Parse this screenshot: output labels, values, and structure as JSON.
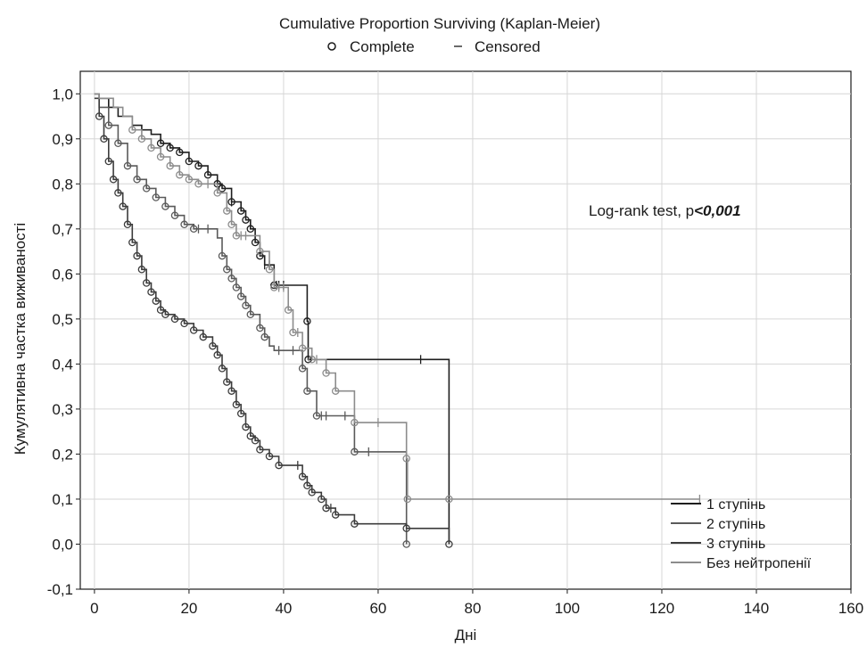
{
  "chart_data": {
    "type": "line",
    "title": "Cumulative Proportion Surviving (Kaplan-Meier)",
    "legend_top": {
      "complete_label": "Complete",
      "censored_label": "Censored"
    },
    "xlabel": "Дні",
    "ylabel": "Кумулятивна частка виживаності",
    "xlim": [
      -3,
      160
    ],
    "ylim": [
      -0.1,
      1.05
    ],
    "xticks": [
      0,
      20,
      40,
      60,
      80,
      100,
      120,
      140,
      160
    ],
    "yticks": [
      "-0,1",
      "0,0",
      "0,1",
      "0,2",
      "0,3",
      "0,4",
      "0,5",
      "0,6",
      "0,7",
      "0,8",
      "0,9",
      "1,0"
    ],
    "grid": true,
    "annotation": {
      "prefix": "Log-rank test, p",
      "value": "<0,001"
    },
    "legend_placement": "bottom-right",
    "series": [
      {
        "name": "1 ступінь",
        "color": "#1e1e1e",
        "steps": [
          [
            0,
            1.0
          ],
          [
            1,
            0.99
          ],
          [
            3,
            0.97
          ],
          [
            5,
            0.95
          ],
          [
            8,
            0.93
          ],
          [
            10,
            0.92
          ],
          [
            12,
            0.91
          ],
          [
            14,
            0.89
          ],
          [
            16,
            0.88
          ],
          [
            18,
            0.87
          ],
          [
            20,
            0.85
          ],
          [
            22,
            0.84
          ],
          [
            24,
            0.82
          ],
          [
            26,
            0.8
          ],
          [
            27,
            0.79
          ],
          [
            29,
            0.76
          ],
          [
            31,
            0.74
          ],
          [
            32,
            0.72
          ],
          [
            33,
            0.7
          ],
          [
            34,
            0.67
          ],
          [
            35,
            0.64
          ],
          [
            36,
            0.62
          ],
          [
            38,
            0.575
          ],
          [
            45,
            0.495
          ],
          [
            45.2,
            0.41
          ],
          [
            75,
            0.0
          ]
        ],
        "end_x": 75,
        "complete_x": [
          14,
          16,
          18,
          20,
          22,
          24,
          26,
          27,
          29,
          31,
          32,
          33,
          34,
          35,
          38,
          45,
          45.2
        ],
        "censored_x": [
          29,
          36,
          37,
          38.5,
          39,
          40,
          69
        ]
      },
      {
        "name": "2 ступінь",
        "color": "#5a5a5a",
        "steps": [
          [
            0,
            1.0
          ],
          [
            1,
            0.97
          ],
          [
            3,
            0.93
          ],
          [
            5,
            0.89
          ],
          [
            7,
            0.84
          ],
          [
            9,
            0.81
          ],
          [
            11,
            0.79
          ],
          [
            13,
            0.77
          ],
          [
            15,
            0.75
          ],
          [
            17,
            0.73
          ],
          [
            19,
            0.71
          ],
          [
            21,
            0.7
          ],
          [
            26,
            0.68
          ],
          [
            27,
            0.64
          ],
          [
            28,
            0.61
          ],
          [
            29,
            0.59
          ],
          [
            30,
            0.57
          ],
          [
            31,
            0.55
          ],
          [
            32,
            0.53
          ],
          [
            33,
            0.51
          ],
          [
            35,
            0.48
          ],
          [
            36,
            0.46
          ],
          [
            37,
            0.44
          ],
          [
            38,
            0.43
          ],
          [
            44,
            0.39
          ],
          [
            45,
            0.34
          ],
          [
            47,
            0.285
          ],
          [
            55,
            0.205
          ],
          [
            66,
            0.0
          ]
        ],
        "end_x": 66,
        "complete_x": [
          3,
          5,
          7,
          9,
          11,
          13,
          15,
          17,
          19,
          21,
          27,
          28,
          29,
          30,
          31,
          32,
          33,
          35,
          36,
          44,
          45,
          47,
          55,
          66
        ],
        "censored_x": [
          22,
          24,
          39,
          42,
          48,
          49,
          53,
          58
        ]
      },
      {
        "name": "3 ступінь",
        "color": "#3c3c3c",
        "steps": [
          [
            0,
            0.99
          ],
          [
            1,
            0.95
          ],
          [
            2,
            0.9
          ],
          [
            3,
            0.85
          ],
          [
            4,
            0.81
          ],
          [
            5,
            0.78
          ],
          [
            6,
            0.75
          ],
          [
            7,
            0.71
          ],
          [
            8,
            0.67
          ],
          [
            9,
            0.64
          ],
          [
            10,
            0.61
          ],
          [
            11,
            0.58
          ],
          [
            12,
            0.56
          ],
          [
            13,
            0.54
          ],
          [
            14,
            0.52
          ],
          [
            15,
            0.51
          ],
          [
            17,
            0.5
          ],
          [
            19,
            0.49
          ],
          [
            21,
            0.475
          ],
          [
            23,
            0.46
          ],
          [
            25,
            0.44
          ],
          [
            26,
            0.42
          ],
          [
            27,
            0.39
          ],
          [
            28,
            0.36
          ],
          [
            29,
            0.34
          ],
          [
            30,
            0.31
          ],
          [
            31,
            0.29
          ],
          [
            32,
            0.26
          ],
          [
            33,
            0.24
          ],
          [
            34,
            0.23
          ],
          [
            35,
            0.21
          ],
          [
            37,
            0.195
          ],
          [
            39,
            0.175
          ],
          [
            44,
            0.15
          ],
          [
            45,
            0.13
          ],
          [
            46,
            0.115
          ],
          [
            48,
            0.1
          ],
          [
            49,
            0.08
          ],
          [
            51,
            0.065
          ],
          [
            55,
            0.045
          ],
          [
            66,
            0.035
          ],
          [
            75,
            0.0
          ]
        ],
        "end_x": 75,
        "complete_x": [
          1,
          2,
          3,
          4,
          5,
          6,
          7,
          8,
          9,
          10,
          11,
          12,
          13,
          14,
          15,
          17,
          19,
          21,
          23,
          25,
          26,
          27,
          28,
          29,
          30,
          31,
          32,
          33,
          34,
          35,
          37,
          39,
          44,
          45,
          46,
          48,
          49,
          51,
          55,
          66,
          75
        ],
        "censored_x": [
          43,
          50
        ]
      },
      {
        "name": "Без нейтропенії",
        "color": "#8c8c8c",
        "steps": [
          [
            0,
            1.0
          ],
          [
            1,
            0.99
          ],
          [
            4,
            0.97
          ],
          [
            6,
            0.95
          ],
          [
            8,
            0.92
          ],
          [
            10,
            0.9
          ],
          [
            12,
            0.88
          ],
          [
            14,
            0.86
          ],
          [
            16,
            0.84
          ],
          [
            18,
            0.82
          ],
          [
            20,
            0.81
          ],
          [
            22,
            0.8
          ],
          [
            26,
            0.78
          ],
          [
            28,
            0.74
          ],
          [
            29,
            0.71
          ],
          [
            30,
            0.685
          ],
          [
            35,
            0.65
          ],
          [
            37,
            0.61
          ],
          [
            38,
            0.57
          ],
          [
            41,
            0.52
          ],
          [
            42,
            0.47
          ],
          [
            44,
            0.435
          ],
          [
            46,
            0.41
          ],
          [
            49,
            0.38
          ],
          [
            51,
            0.34
          ],
          [
            55,
            0.27
          ],
          [
            66,
            0.19
          ],
          [
            66.2,
            0.1
          ],
          [
            75,
            0.1
          ],
          [
            128,
            0.1
          ]
        ],
        "end_x": 128,
        "complete_x": [
          8,
          10,
          12,
          14,
          16,
          18,
          20,
          22,
          26,
          28,
          29,
          30,
          35,
          37,
          38,
          41,
          42,
          44,
          46,
          49,
          51,
          55,
          66,
          66.2,
          75
        ],
        "censored_x": [
          24,
          31,
          32,
          39,
          40,
          43,
          47,
          60,
          128
        ]
      }
    ]
  }
}
